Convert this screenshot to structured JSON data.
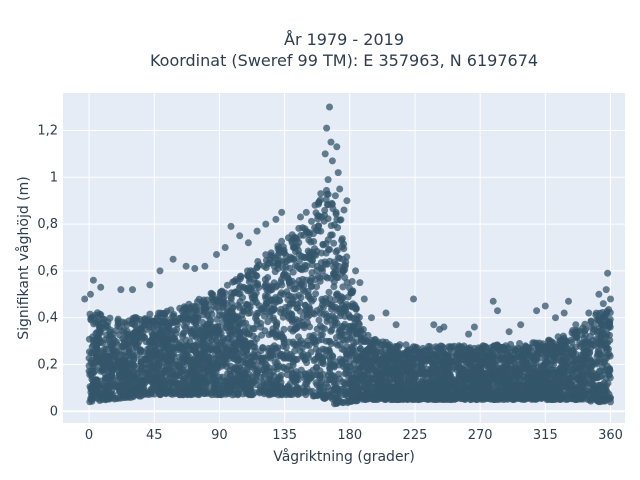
{
  "chart_data": {
    "type": "scatter",
    "title_line1": "År 1979 - 2019",
    "title_line2": "Koordinat (Sweref 99 TM): E 357963, N 6197674",
    "xlabel": "Vågriktning (grader)",
    "ylabel": "Signifikant våghöjd (m)",
    "xlim": [
      -18,
      370
    ],
    "ylim": [
      -0.05,
      1.36
    ],
    "grid": true,
    "xticks": [
      0,
      45,
      90,
      135,
      180,
      225,
      270,
      315,
      360
    ],
    "xtick_labels": [
      "0",
      "45",
      "90",
      "135",
      "180",
      "225",
      "270",
      "315",
      "360"
    ],
    "yticks": [
      0,
      0.2,
      0.4,
      0.6,
      0.8,
      1.0,
      1.2
    ],
    "ytick_labels": [
      "0",
      "0,2",
      "0,4",
      "0,6",
      "0,8",
      "1",
      "1,2"
    ],
    "colors": {
      "marker": "#34566b",
      "plot_bg": "#e5ecf6",
      "grid": "#ffffff",
      "text": "#2f3e4f"
    },
    "envelope": {
      "description": "upper bound of dense cloud of significant wave height by direction",
      "x": [
        0,
        15,
        30,
        45,
        60,
        75,
        90,
        105,
        120,
        135,
        150,
        160,
        165,
        170,
        175,
        180,
        190,
        200,
        225,
        270,
        315,
        340,
        350,
        360
      ],
      "upper": [
        0.44,
        0.4,
        0.4,
        0.42,
        0.44,
        0.48,
        0.52,
        0.58,
        0.66,
        0.74,
        0.82,
        0.92,
        0.96,
        0.94,
        0.8,
        0.6,
        0.34,
        0.3,
        0.28,
        0.28,
        0.3,
        0.36,
        0.42,
        0.44
      ],
      "lower": [
        0.04,
        0.05,
        0.06,
        0.07,
        0.07,
        0.07,
        0.07,
        0.07,
        0.07,
        0.07,
        0.07,
        0.06,
        0.05,
        0.03,
        0.03,
        0.04,
        0.05,
        0.05,
        0.05,
        0.05,
        0.05,
        0.05,
        0.04,
        0.04
      ]
    },
    "outliers": [
      [
        166,
        1.3
      ],
      [
        164,
        1.21
      ],
      [
        167,
        1.15
      ],
      [
        171,
        1.13
      ],
      [
        163,
        1.1
      ],
      [
        168,
        1.07
      ],
      [
        172,
        1.02
      ],
      [
        165,
        0.99
      ],
      [
        173,
        0.95
      ],
      [
        160,
        0.93
      ],
      [
        178,
        0.9
      ],
      [
        176,
        0.86
      ],
      [
        156,
        0.88
      ],
      [
        150,
        0.85
      ],
      [
        146,
        0.83
      ],
      [
        133,
        0.85
      ],
      [
        129,
        0.82
      ],
      [
        122,
        0.8
      ],
      [
        98,
        0.79
      ],
      [
        104,
        0.75
      ],
      [
        116,
        0.77
      ],
      [
        110,
        0.72
      ],
      [
        94,
        0.7
      ],
      [
        88,
        0.67
      ],
      [
        80,
        0.62
      ],
      [
        73,
        0.61
      ],
      [
        67,
        0.62
      ],
      [
        58,
        0.65
      ],
      [
        49,
        0.6
      ],
      [
        42,
        0.54
      ],
      [
        30,
        0.52
      ],
      [
        22,
        0.52
      ],
      [
        8,
        0.53
      ],
      [
        3,
        0.56
      ],
      [
        -3,
        0.48
      ],
      [
        1,
        0.5
      ],
      [
        184,
        0.6
      ],
      [
        187,
        0.55
      ],
      [
        190,
        0.48
      ],
      [
        195,
        0.4
      ],
      [
        205,
        0.42
      ],
      [
        212,
        0.37
      ],
      [
        224,
        0.48
      ],
      [
        238,
        0.37
      ],
      [
        242,
        0.35
      ],
      [
        262,
        0.33
      ],
      [
        266,
        0.36
      ],
      [
        279,
        0.47
      ],
      [
        282,
        0.43
      ],
      [
        290,
        0.34
      ],
      [
        298,
        0.37
      ],
      [
        309,
        0.43
      ],
      [
        315,
        0.45
      ],
      [
        322,
        0.4
      ],
      [
        328,
        0.42
      ],
      [
        336,
        0.37
      ],
      [
        345,
        0.42
      ],
      [
        352,
        0.5
      ],
      [
        355,
        0.46
      ],
      [
        358,
        0.59
      ],
      [
        357,
        0.52
      ],
      [
        360,
        0.48
      ],
      [
        331,
        0.47
      ],
      [
        245,
        0.36
      ]
    ]
  }
}
